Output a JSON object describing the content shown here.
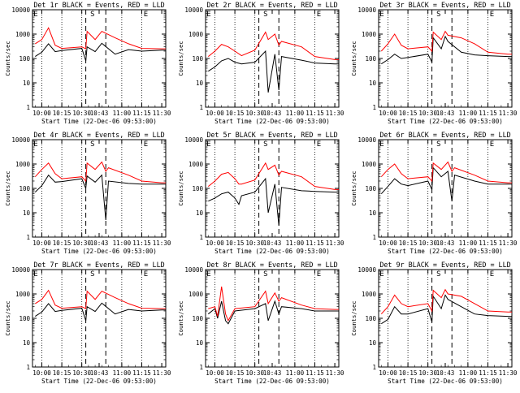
{
  "figure": {
    "xlabel": "Start Time (22-Dec-06 09:53:00)",
    "ylabel": "Counts/sec",
    "x_ticks": [
      "10:00",
      "10:15",
      "10:30",
      "10:43",
      "11:00",
      "11:15",
      "11:30"
    ],
    "y_ticks": [
      "1",
      "10",
      "100",
      "1000",
      "10000"
    ],
    "markers": {
      "s": "S",
      "e": "E"
    },
    "colors": {
      "events": "#000000",
      "lld": "#ff0000",
      "axis": "#000000"
    }
  },
  "chart_data": [
    {
      "type": "line",
      "title": "Det 1r BLACK = Events, RED = LLD",
      "flags": [
        "E",
        "S",
        "E"
      ],
      "ylim": [
        1,
        10000
      ],
      "yscale": "log",
      "grid": false,
      "series": [
        {
          "name": "Events",
          "color": "#000000",
          "x": [
            "09:55",
            "10:00",
            "10:05",
            "10:10",
            "10:15",
            "10:30",
            "10:33",
            "10:34",
            "10:40",
            "10:45",
            "10:55",
            "11:05",
            "11:15",
            "11:30",
            "11:33"
          ],
          "values": [
            120,
            180,
            400,
            190,
            210,
            260,
            80,
            300,
            190,
            420,
            150,
            230,
            200,
            220,
            220
          ]
        },
        {
          "name": "LLD",
          "color": "#ff0000",
          "x": [
            "09:55",
            "10:00",
            "10:05",
            "10:10",
            "10:15",
            "10:30",
            "10:33",
            "10:34",
            "10:40",
            "10:45",
            "10:55",
            "11:05",
            "11:15",
            "11:30",
            "11:33"
          ],
          "values": [
            400,
            600,
            1800,
            350,
            260,
            300,
            250,
            1300,
            600,
            1300,
            700,
            400,
            260,
            250,
            250
          ]
        }
      ]
    },
    {
      "type": "line",
      "title": "Det 2r BLACK = Events, RED = LLD",
      "flags": [
        "E",
        "S",
        "E"
      ],
      "ylim": [
        1,
        10000
      ],
      "yscale": "log",
      "grid": false,
      "series": [
        {
          "name": "Events",
          "color": "#000000",
          "x": [
            "09:55",
            "10:00",
            "10:05",
            "10:10",
            "10:15",
            "10:20",
            "10:30",
            "10:38",
            "10:40",
            "10:45",
            "10:48",
            "10:50",
            "11:05",
            "11:15",
            "11:30",
            "11:33"
          ],
          "values": [
            30,
            45,
            80,
            100,
            70,
            60,
            70,
            200,
            4,
            150,
            5,
            120,
            85,
            65,
            60,
            60
          ]
        },
        {
          "name": "LLD",
          "color": "#ff0000",
          "x": [
            "09:55",
            "10:00",
            "10:05",
            "10:10",
            "10:15",
            "10:20",
            "10:30",
            "10:38",
            "10:40",
            "10:45",
            "10:48",
            "10:50",
            "11:05",
            "11:15",
            "11:30",
            "11:33"
          ],
          "values": [
            120,
            200,
            380,
            300,
            200,
            130,
            220,
            1200,
            600,
            1000,
            350,
            500,
            300,
            120,
            90,
            90
          ]
        }
      ]
    },
    {
      "type": "line",
      "title": "Det 3r BLACK = Events, RED = LLD",
      "flags": [
        "E",
        "S",
        "E"
      ],
      "ylim": [
        1,
        10000
      ],
      "yscale": "log",
      "grid": false,
      "series": [
        {
          "name": "Events",
          "color": "#000000",
          "x": [
            "09:55",
            "10:00",
            "10:05",
            "10:10",
            "10:15",
            "10:30",
            "10:33",
            "10:34",
            "10:40",
            "10:43",
            "10:45",
            "10:55",
            "11:05",
            "11:15",
            "11:30",
            "11:33"
          ],
          "values": [
            60,
            90,
            150,
            100,
            110,
            150,
            70,
            700,
            250,
            800,
            500,
            180,
            140,
            130,
            120,
            120
          ]
        },
        {
          "name": "LLD",
          "color": "#ff0000",
          "x": [
            "09:55",
            "10:00",
            "10:05",
            "10:10",
            "10:15",
            "10:30",
            "10:33",
            "10:34",
            "10:40",
            "10:43",
            "10:45",
            "10:55",
            "11:05",
            "11:15",
            "11:30",
            "11:33"
          ],
          "values": [
            200,
            400,
            1000,
            350,
            250,
            300,
            200,
            1200,
            600,
            1300,
            900,
            700,
            400,
            180,
            150,
            150
          ]
        }
      ]
    },
    {
      "type": "line",
      "title": "Det 4r BLACK = Events, RED = LLD",
      "flags": [
        "E",
        "S",
        "E"
      ],
      "ylim": [
        1,
        10000
      ],
      "yscale": "log",
      "grid": false,
      "series": [
        {
          "name": "Events",
          "color": "#000000",
          "x": [
            "09:55",
            "10:00",
            "10:05",
            "10:10",
            "10:15",
            "10:30",
            "10:33",
            "10:34",
            "10:40",
            "10:45",
            "10:48",
            "10:50",
            "11:05",
            "11:15",
            "11:30",
            "11:33"
          ],
          "values": [
            70,
            130,
            350,
            180,
            190,
            250,
            100,
            320,
            180,
            350,
            5,
            200,
            160,
            150,
            150,
            150
          ]
        },
        {
          "name": "LLD",
          "color": "#ff0000",
          "x": [
            "09:55",
            "10:00",
            "10:05",
            "10:10",
            "10:15",
            "10:30",
            "10:33",
            "10:34",
            "10:40",
            "10:45",
            "10:48",
            "10:50",
            "11:05",
            "11:15",
            "11:30",
            "11:33"
          ],
          "values": [
            300,
            600,
            1100,
            400,
            250,
            300,
            200,
            1100,
            600,
            1200,
            500,
            700,
            350,
            200,
            170,
            170
          ]
        }
      ]
    },
    {
      "type": "line",
      "title": "Det 5r BLACK = Events, RED = LLD",
      "flags": [
        "E",
        "S",
        "E"
      ],
      "ylim": [
        1,
        10000
      ],
      "yscale": "log",
      "grid": false,
      "series": [
        {
          "name": "Events",
          "color": "#000000",
          "x": [
            "09:55",
            "10:00",
            "10:05",
            "10:10",
            "10:15",
            "10:18",
            "10:20",
            "10:30",
            "10:38",
            "10:40",
            "10:45",
            "10:48",
            "10:50",
            "11:05",
            "11:15",
            "11:30",
            "11:33"
          ],
          "values": [
            30,
            40,
            60,
            70,
            40,
            22,
            50,
            70,
            250,
            10,
            150,
            3,
            110,
            80,
            75,
            70,
            70
          ]
        },
        {
          "name": "LLD",
          "color": "#ff0000",
          "x": [
            "09:55",
            "10:00",
            "10:05",
            "10:10",
            "10:15",
            "10:18",
            "10:20",
            "10:30",
            "10:38",
            "10:40",
            "10:45",
            "10:48",
            "10:50",
            "11:05",
            "11:15",
            "11:30",
            "11:33"
          ],
          "values": [
            120,
            200,
            380,
            450,
            250,
            150,
            150,
            220,
            1100,
            600,
            900,
            350,
            500,
            300,
            120,
            90,
            90
          ]
        }
      ]
    },
    {
      "type": "line",
      "title": "Det 6r BLACK = Events, RED = LLD",
      "flags": [
        "E",
        "S",
        "E"
      ],
      "ylim": [
        1,
        10000
      ],
      "yscale": "log",
      "grid": false,
      "series": [
        {
          "name": "Events",
          "color": "#000000",
          "x": [
            "09:55",
            "10:00",
            "10:05",
            "10:10",
            "10:15",
            "10:30",
            "10:33",
            "10:34",
            "10:40",
            "10:45",
            "10:48",
            "10:50",
            "11:05",
            "11:15",
            "11:30",
            "11:33"
          ],
          "values": [
            60,
            120,
            250,
            150,
            130,
            200,
            90,
            700,
            300,
            500,
            30,
            350,
            200,
            150,
            150,
            150
          ]
        },
        {
          "name": "LLD",
          "color": "#ff0000",
          "x": [
            "09:55",
            "10:00",
            "10:05",
            "10:10",
            "10:15",
            "10:30",
            "10:33",
            "10:34",
            "10:40",
            "10:45",
            "10:48",
            "10:50",
            "11:05",
            "11:15",
            "11:30",
            "11:33"
          ],
          "values": [
            300,
            600,
            1000,
            400,
            250,
            300,
            200,
            1100,
            600,
            1200,
            500,
            700,
            350,
            200,
            170,
            170
          ]
        }
      ]
    },
    {
      "type": "line",
      "title": "Det 7r BLACK = Events, RED = LLD",
      "flags": [
        "E",
        "S",
        "E"
      ],
      "ylim": [
        1,
        10000
      ],
      "yscale": "log",
      "grid": false,
      "series": [
        {
          "name": "Events",
          "color": "#000000",
          "x": [
            "09:55",
            "10:00",
            "10:05",
            "10:10",
            "10:15",
            "10:30",
            "10:33",
            "10:34",
            "10:40",
            "10:45",
            "10:55",
            "11:05",
            "11:15",
            "11:30",
            "11:33"
          ],
          "values": [
            120,
            180,
            400,
            190,
            210,
            260,
            80,
            300,
            190,
            420,
            150,
            230,
            200,
            220,
            220
          ]
        },
        {
          "name": "LLD",
          "color": "#ff0000",
          "x": [
            "09:55",
            "10:00",
            "10:05",
            "10:10",
            "10:15",
            "10:30",
            "10:33",
            "10:34",
            "10:40",
            "10:45",
            "10:55",
            "11:05",
            "11:15",
            "11:30",
            "11:33"
          ],
          "values": [
            400,
            600,
            1400,
            350,
            260,
            300,
            250,
            1300,
            600,
            1300,
            700,
            400,
            260,
            250,
            250
          ]
        }
      ]
    },
    {
      "type": "line",
      "title": "Det 8r BLACK = Events, RED = LLD",
      "flags": [
        "E",
        "S",
        "E"
      ],
      "ylim": [
        1,
        10000
      ],
      "yscale": "log",
      "grid": false,
      "series": [
        {
          "name": "Events",
          "color": "#000000",
          "x": [
            "09:55",
            "10:00",
            "10:02",
            "10:05",
            "10:08",
            "10:10",
            "10:15",
            "10:30",
            "10:38",
            "10:40",
            "10:45",
            "10:48",
            "10:50",
            "11:05",
            "11:15",
            "11:30",
            "11:33"
          ],
          "values": [
            150,
            250,
            100,
            500,
            80,
            60,
            200,
            250,
            400,
            80,
            500,
            150,
            300,
            250,
            200,
            200,
            200
          ]
        },
        {
          "name": "LLD",
          "color": "#ff0000",
          "x": [
            "09:55",
            "10:00",
            "10:02",
            "10:05",
            "10:08",
            "10:10",
            "10:15",
            "10:30",
            "10:38",
            "10:40",
            "10:45",
            "10:48",
            "10:50",
            "11:05",
            "11:15",
            "11:30",
            "11:33"
          ],
          "values": [
            250,
            300,
            120,
            2000,
            150,
            80,
            250,
            300,
            1300,
            400,
            1100,
            500,
            700,
            350,
            250,
            230,
            230
          ]
        }
      ]
    },
    {
      "type": "line",
      "title": "Det 9r BLACK = Events, RED = LLD",
      "flags": [
        "E",
        "S",
        "E"
      ],
      "ylim": [
        1,
        10000
      ],
      "yscale": "log",
      "grid": false,
      "series": [
        {
          "name": "Events",
          "color": "#000000",
          "x": [
            "09:55",
            "10:00",
            "10:05",
            "10:10",
            "10:15",
            "10:30",
            "10:33",
            "10:34",
            "10:40",
            "10:43",
            "10:45",
            "10:55",
            "11:05",
            "11:15",
            "11:30",
            "11:33"
          ],
          "values": [
            60,
            90,
            300,
            150,
            150,
            250,
            70,
            800,
            250,
            900,
            600,
            300,
            150,
            130,
            120,
            120
          ]
        },
        {
          "name": "LLD",
          "color": "#ff0000",
          "x": [
            "09:55",
            "10:00",
            "10:05",
            "10:10",
            "10:15",
            "10:30",
            "10:33",
            "10:34",
            "10:40",
            "10:43",
            "10:45",
            "10:55",
            "11:05",
            "11:15",
            "11:30",
            "11:33"
          ],
          "values": [
            150,
            300,
            900,
            400,
            300,
            400,
            200,
            1400,
            700,
            1500,
            1000,
            800,
            400,
            200,
            180,
            180
          ]
        }
      ]
    }
  ]
}
